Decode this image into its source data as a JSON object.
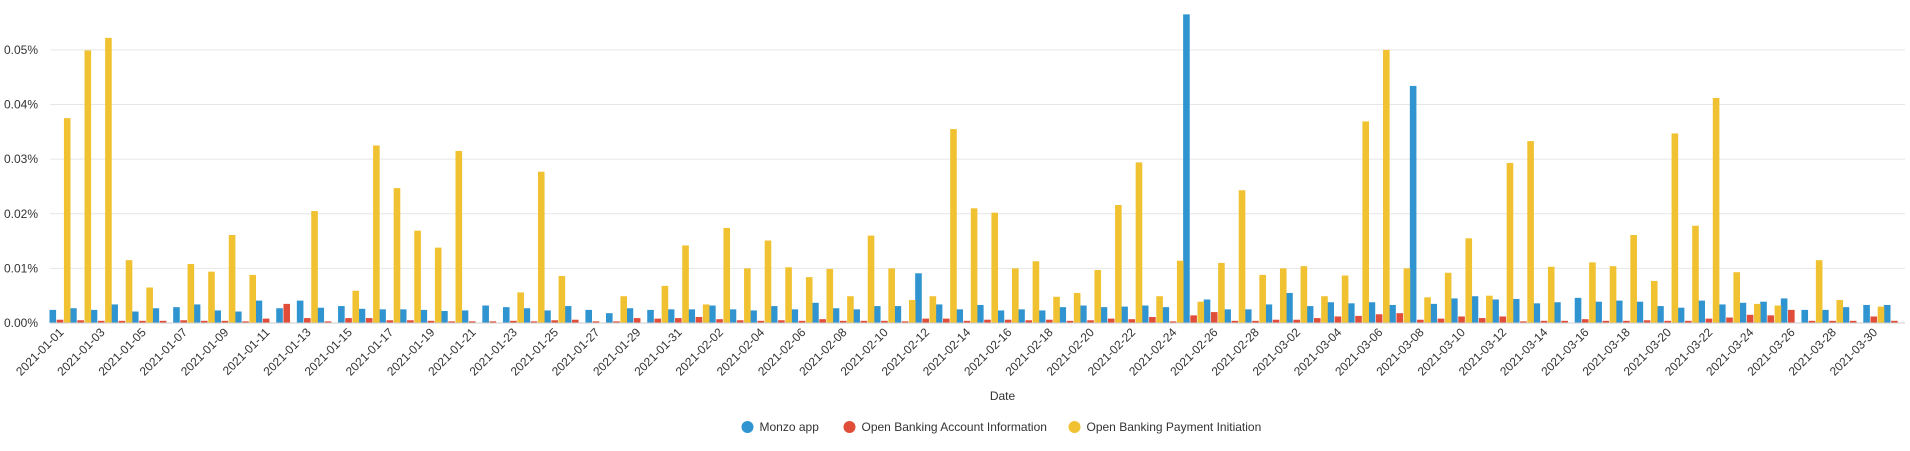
{
  "chart_data": {
    "type": "bar",
    "xlabel": "Date",
    "ylabel": "",
    "ylim": [
      0,
      0.0573
    ],
    "yticks": [
      0,
      0.01,
      0.02,
      0.03,
      0.04,
      0.05
    ],
    "ytick_labels": [
      "0.00%",
      "0.01%",
      "0.02%",
      "0.03%",
      "0.04%",
      "0.05%"
    ],
    "grid": true,
    "legend_position": "bottom-center",
    "categories": [
      "2021-01-01",
      "2021-01-02",
      "2021-01-03",
      "2021-01-04",
      "2021-01-05",
      "2021-01-06",
      "2021-01-07",
      "2021-01-08",
      "2021-01-09",
      "2021-01-10",
      "2021-01-11",
      "2021-01-12",
      "2021-01-13",
      "2021-01-14",
      "2021-01-15",
      "2021-01-16",
      "2021-01-17",
      "2021-01-18",
      "2021-01-19",
      "2021-01-20",
      "2021-01-21",
      "2021-01-22",
      "2021-01-23",
      "2021-01-24",
      "2021-01-25",
      "2021-01-26",
      "2021-01-27",
      "2021-01-28",
      "2021-01-29",
      "2021-01-30",
      "2021-01-31",
      "2021-02-01",
      "2021-02-02",
      "2021-02-03",
      "2021-02-04",
      "2021-02-05",
      "2021-02-06",
      "2021-02-07",
      "2021-02-08",
      "2021-02-09",
      "2021-02-10",
      "2021-02-11",
      "2021-02-12",
      "2021-02-13",
      "2021-02-14",
      "2021-02-15",
      "2021-02-16",
      "2021-02-17",
      "2021-02-18",
      "2021-02-19",
      "2021-02-20",
      "2021-02-21",
      "2021-02-22",
      "2021-02-23",
      "2021-02-24",
      "2021-02-25",
      "2021-02-26",
      "2021-02-27",
      "2021-02-28",
      "2021-03-01",
      "2021-03-02",
      "2021-03-03",
      "2021-03-04",
      "2021-03-05",
      "2021-03-06",
      "2021-03-07",
      "2021-03-08",
      "2021-03-09",
      "2021-03-10",
      "2021-03-11",
      "2021-03-12",
      "2021-03-13",
      "2021-03-14",
      "2021-03-15",
      "2021-03-16",
      "2021-03-17",
      "2021-03-18",
      "2021-03-19",
      "2021-03-20",
      "2021-03-21",
      "2021-03-22",
      "2021-03-23",
      "2021-03-24",
      "2021-03-25",
      "2021-03-26",
      "2021-03-27",
      "2021-03-28",
      "2021-03-29",
      "2021-03-30",
      "2021-03-31"
    ],
    "xtick_labels": [
      "2021-01-01",
      "2021-01-03",
      "2021-01-05",
      "2021-01-07",
      "2021-01-09",
      "2021-01-11",
      "2021-01-13",
      "2021-01-15",
      "2021-01-17",
      "2021-01-19",
      "2021-01-21",
      "2021-01-23",
      "2021-01-25",
      "2021-01-27",
      "2021-01-29",
      "2021-01-31",
      "2021-02-02",
      "2021-02-04",
      "2021-02-06",
      "2021-02-08",
      "2021-02-10",
      "2021-02-12",
      "2021-02-14",
      "2021-02-16",
      "2021-02-18",
      "2021-02-20",
      "2021-02-22",
      "2021-02-24",
      "2021-02-26",
      "2021-02-28",
      "2021-03-02",
      "2021-03-04",
      "2021-03-06",
      "2021-03-08",
      "2021-03-10",
      "2021-03-12",
      "2021-03-14",
      "2021-03-16",
      "2021-03-18",
      "2021-03-20",
      "2021-03-22",
      "2021-03-24",
      "2021-03-26",
      "2021-03-28",
      "2021-03-30"
    ],
    "series": [
      {
        "name": "Monzo app",
        "color": "#2f94d0",
        "values": [
          0.0024,
          0.0027,
          0.0024,
          0.0034,
          0.0021,
          0.0027,
          0.0029,
          0.0034,
          0.0023,
          0.0021,
          0.0041,
          0.0027,
          0.0041,
          0.0028,
          0.0031,
          0.0026,
          0.0025,
          0.0025,
          0.0024,
          0.0022,
          0.0023,
          0.0032,
          0.0029,
          0.0027,
          0.0023,
          0.0031,
          0.0024,
          0.0018,
          0.0027,
          0.0024,
          0.0025,
          0.0025,
          0.0032,
          0.0025,
          0.0023,
          0.0031,
          0.0025,
          0.0037,
          0.0027,
          0.0025,
          0.0031,
          0.0031,
          0.0091,
          0.0034,
          0.0025,
          0.0033,
          0.0023,
          0.0025,
          0.0023,
          0.0029,
          0.0032,
          0.0029,
          0.003,
          0.0032,
          0.0029,
          0.0565,
          0.0043,
          0.0025,
          0.0025,
          0.0034,
          0.0055,
          0.0031,
          0.0038,
          0.0036,
          0.0038,
          0.0033,
          0.0434,
          0.0035,
          0.0045,
          0.0049,
          0.0043,
          0.0044,
          0.0036,
          0.0038,
          0.0046,
          0.0039,
          0.0041,
          0.0039,
          0.0031,
          0.0028,
          0.0041,
          0.0034,
          0.0037,
          0.0039,
          0.0045,
          0.0024,
          0.0024,
          0.0029,
          0.0033,
          0.0033
        ]
      },
      {
        "name": "Open Banking Account Information",
        "color": "#e04e39",
        "values": [
          0.0006,
          0.0005,
          0.0004,
          0.0004,
          0.0004,
          0.0004,
          0.0005,
          0.0004,
          0.0004,
          0.0003,
          0.0008,
          0.0035,
          0.0009,
          0.0003,
          0.0009,
          0.0009,
          0.0005,
          0.0005,
          0.0004,
          0.0003,
          0.0003,
          0.0003,
          0.0004,
          0.0003,
          0.0005,
          0.0006,
          0.0003,
          0.0003,
          0.0009,
          0.0008,
          0.0009,
          0.0011,
          0.0007,
          0.0005,
          0.0004,
          0.0005,
          0.0004,
          0.0007,
          0.0004,
          0.0004,
          0.0004,
          0.0003,
          0.0008,
          0.0008,
          0.0004,
          0.0006,
          0.0006,
          0.0005,
          0.0006,
          0.0004,
          0.0005,
          0.0008,
          0.0007,
          0.0011,
          0.0003,
          0.0014,
          0.002,
          0.0004,
          0.0004,
          0.0006,
          0.0006,
          0.0009,
          0.0012,
          0.0013,
          0.0016,
          0.0018,
          0.0006,
          0.0008,
          0.0012,
          0.0009,
          0.0012,
          0.0003,
          0.0004,
          0.0004,
          0.0007,
          0.0004,
          0.0004,
          0.0005,
          0.0004,
          0.0004,
          0.0008,
          0.001,
          0.0015,
          0.0014,
          0.0024,
          0.0004,
          0.0004,
          0.0004,
          0.0012,
          0.0004
        ]
      },
      {
        "name": "Open Banking Payment Initiation",
        "color": "#f0c130",
        "values": [
          0.0375,
          0.0499,
          0.0522,
          0.0115,
          0.0065,
          0.0,
          0.0108,
          0.0094,
          0.0161,
          0.0088,
          0.0,
          0.0,
          0.0205,
          0.0,
          0.0059,
          0.0325,
          0.0247,
          0.0169,
          0.0138,
          0.0315,
          0.0,
          0.0,
          0.0056,
          0.0277,
          0.0086,
          0.0,
          0.0,
          0.0049,
          0.0,
          0.0068,
          0.0142,
          0.0034,
          0.0174,
          0.01,
          0.0151,
          0.0102,
          0.0084,
          0.0099,
          0.0049,
          0.016,
          0.01,
          0.0042,
          0.0049,
          0.0355,
          0.021,
          0.0202,
          0.01,
          0.0113,
          0.0048,
          0.0055,
          0.0097,
          0.0216,
          0.0294,
          0.0049,
          0.0114,
          0.0039,
          0.011,
          0.0243,
          0.0088,
          0.01,
          0.0104,
          0.0049,
          0.0087,
          0.0369,
          0.05,
          0.01,
          0.0047,
          0.0092,
          0.0155,
          0.005,
          0.0293,
          0.0333,
          0.0103,
          0.0,
          0.0111,
          0.0104,
          0.0161,
          0.0077,
          0.0347,
          0.0178,
          0.0412,
          0.0093,
          0.0035,
          0.0032,
          0.0,
          0.0115,
          0.0042,
          0.0,
          0.003,
          0.0
        ]
      }
    ]
  }
}
